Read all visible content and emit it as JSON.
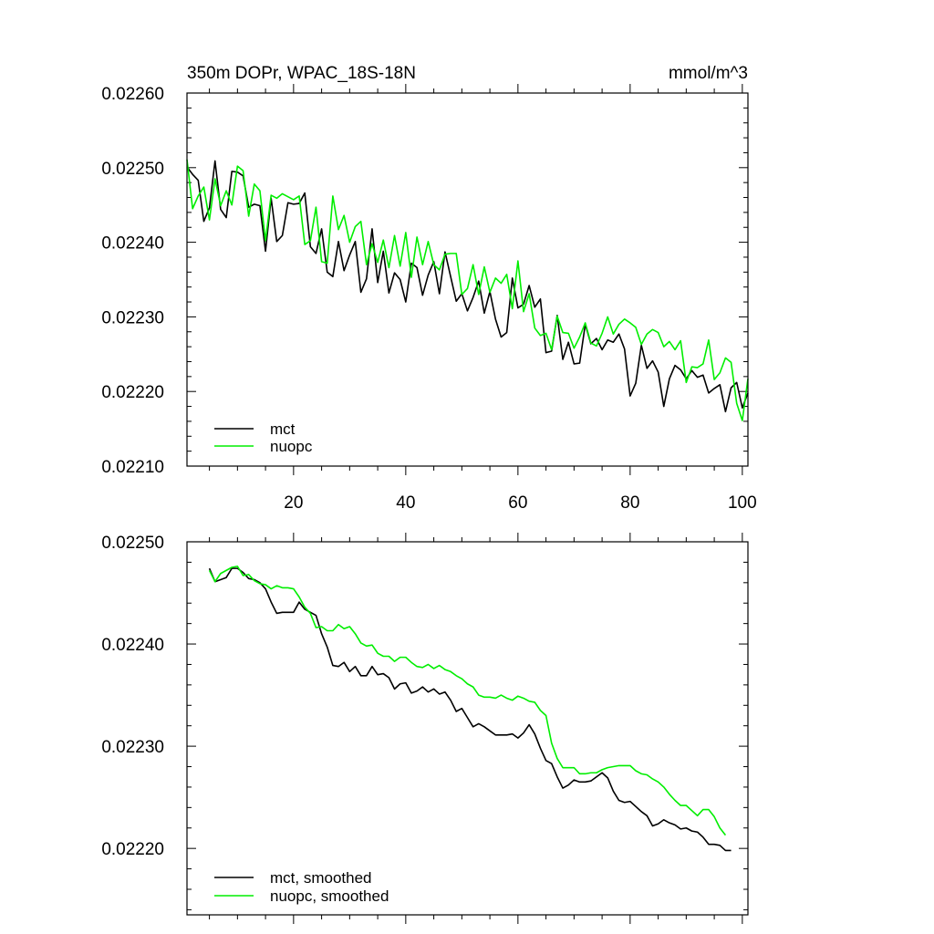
{
  "chart_data": [
    {
      "type": "line",
      "title": "350m DOPr, WPAC_18S-18N",
      "units": "mmol/m^3",
      "xlabel": "",
      "ylabel": "",
      "xlim": [
        1,
        101
      ],
      "ylim": [
        0.0221,
        0.0226
      ],
      "yticks": [
        "0.02210",
        "0.02220",
        "0.02230",
        "0.02240",
        "0.02250",
        "0.02260"
      ],
      "ytick_values": [
        0.0221,
        0.0222,
        0.0223,
        0.0224,
        0.0225,
        0.0226
      ],
      "xticks": [
        "20",
        "40",
        "60",
        "80",
        "100"
      ],
      "xtick_values": [
        20,
        40,
        60,
        80,
        100
      ],
      "legend_position": "bottom-left",
      "series": [
        {
          "name": "mct",
          "color": "#000000",
          "x_start": 1,
          "values": [
            0.022501,
            0.022491,
            0.022483,
            0.022428,
            0.022446,
            0.022509,
            0.022444,
            0.022433,
            0.022495,
            0.022494,
            0.022489,
            0.022447,
            0.022451,
            0.022449,
            0.022388,
            0.022459,
            0.022401,
            0.022409,
            0.022453,
            0.022451,
            0.022452,
            0.022466,
            0.022394,
            0.022385,
            0.022418,
            0.02236,
            0.022354,
            0.022401,
            0.022362,
            0.022383,
            0.022401,
            0.022333,
            0.022351,
            0.022418,
            0.022346,
            0.022388,
            0.022332,
            0.022359,
            0.02235,
            0.02232,
            0.022372,
            0.022366,
            0.022329,
            0.022356,
            0.022374,
            0.022331,
            0.022387,
            0.022354,
            0.022321,
            0.022331,
            0.022308,
            0.022326,
            0.022348,
            0.022305,
            0.022334,
            0.022297,
            0.022273,
            0.022279,
            0.022352,
            0.022312,
            0.022317,
            0.022342,
            0.022313,
            0.022324,
            0.022252,
            0.022254,
            0.022302,
            0.022243,
            0.022266,
            0.022237,
            0.022238,
            0.02229,
            0.022264,
            0.022271,
            0.022256,
            0.022269,
            0.022266,
            0.022277,
            0.022257,
            0.022194,
            0.022211,
            0.022262,
            0.022231,
            0.022241,
            0.022226,
            0.02218,
            0.022217,
            0.022235,
            0.022229,
            0.022217,
            0.022228,
            0.022219,
            0.022222,
            0.022198,
            0.022204,
            0.022209,
            0.022173,
            0.022205,
            0.022212,
            0.022178,
            0.022198
          ]
        },
        {
          "name": "nuopc",
          "color": "#00ee00",
          "x_start": 1,
          "values": [
            0.022511,
            0.022445,
            0.022462,
            0.022474,
            0.02243,
            0.022485,
            0.022449,
            0.022469,
            0.02245,
            0.022502,
            0.022496,
            0.022435,
            0.022478,
            0.022469,
            0.022402,
            0.022463,
            0.022459,
            0.022465,
            0.022461,
            0.022457,
            0.022462,
            0.022397,
            0.022402,
            0.022447,
            0.022374,
            0.022372,
            0.022462,
            0.022417,
            0.022436,
            0.0224,
            0.022421,
            0.022428,
            0.02237,
            0.022398,
            0.022373,
            0.022403,
            0.022366,
            0.022409,
            0.022368,
            0.022413,
            0.022353,
            0.022407,
            0.02237,
            0.022401,
            0.02237,
            0.022363,
            0.022384,
            0.022385,
            0.022385,
            0.02233,
            0.022338,
            0.02237,
            0.02233,
            0.022367,
            0.022333,
            0.022352,
            0.022345,
            0.022357,
            0.022311,
            0.022375,
            0.022307,
            0.022331,
            0.022285,
            0.022275,
            0.022278,
            0.022256,
            0.022301,
            0.022279,
            0.022278,
            0.022258,
            0.022273,
            0.022292,
            0.022265,
            0.022261,
            0.022278,
            0.0223,
            0.022277,
            0.02229,
            0.022297,
            0.022292,
            0.022286,
            0.022263,
            0.022277,
            0.022283,
            0.022279,
            0.02226,
            0.022267,
            0.022256,
            0.022268,
            0.022212,
            0.022233,
            0.022232,
            0.022237,
            0.022269,
            0.022216,
            0.022225,
            0.022245,
            0.022239,
            0.022184,
            0.022161,
            0.022217
          ]
        }
      ]
    },
    {
      "type": "line",
      "title": "",
      "xlabel": "",
      "ylabel": "",
      "xlim": [
        1,
        101
      ],
      "ylim": [
        0.022135,
        0.0225
      ],
      "yticks": [
        "0.02220",
        "0.02230",
        "0.02240",
        "0.02250"
      ],
      "ytick_values": [
        0.0222,
        0.0223,
        0.0224,
        0.0225
      ],
      "legend_position": "bottom-left",
      "series": [
        {
          "name": "mct, smoothed",
          "color": "#000000",
          "x_start": 5,
          "values": [
            0.022474,
            0.022461,
            0.022463,
            0.022465,
            0.022474,
            0.022474,
            0.02247,
            0.022464,
            0.022463,
            0.02246,
            0.022454,
            0.022441,
            0.02243,
            0.022431,
            0.022431,
            0.022431,
            0.022441,
            0.022434,
            0.022431,
            0.022428,
            0.02241,
            0.022397,
            0.022379,
            0.022378,
            0.022382,
            0.022373,
            0.022378,
            0.022369,
            0.022369,
            0.022378,
            0.02237,
            0.022371,
            0.022367,
            0.022356,
            0.022361,
            0.022362,
            0.022352,
            0.022354,
            0.022358,
            0.022353,
            0.022356,
            0.022351,
            0.022353,
            0.022345,
            0.022334,
            0.022337,
            0.022328,
            0.022319,
            0.022322,
            0.022319,
            0.022315,
            0.022311,
            0.022311,
            0.022311,
            0.022312,
            0.022308,
            0.022313,
            0.022321,
            0.022312,
            0.022298,
            0.022286,
            0.022283,
            0.02227,
            0.022259,
            0.022262,
            0.022267,
            0.022265,
            0.022265,
            0.022266,
            0.02227,
            0.022274,
            0.022269,
            0.022256,
            0.022247,
            0.022245,
            0.022246,
            0.022241,
            0.022236,
            0.022232,
            0.022222,
            0.022224,
            0.022228,
            0.022225,
            0.022223,
            0.022219,
            0.02222,
            0.022217,
            0.022216,
            0.022211,
            0.022204,
            0.022204,
            0.022203,
            0.022198,
            0.022198
          ]
        },
        {
          "name": "nuopc, smoothed",
          "color": "#00ee00",
          "x_start": 5,
          "values": [
            0.022472,
            0.022461,
            0.022469,
            0.022472,
            0.022475,
            0.022476,
            0.022467,
            0.022468,
            0.022462,
            0.022459,
            0.022458,
            0.022454,
            0.022457,
            0.022455,
            0.022455,
            0.022454,
            0.022446,
            0.022436,
            0.02243,
            0.022416,
            0.022417,
            0.022413,
            0.022413,
            0.022419,
            0.022415,
            0.022417,
            0.02241,
            0.022401,
            0.022398,
            0.022399,
            0.022391,
            0.022388,
            0.022388,
            0.022383,
            0.022387,
            0.022387,
            0.022382,
            0.022378,
            0.022377,
            0.02238,
            0.022376,
            0.022379,
            0.022375,
            0.022373,
            0.022369,
            0.022366,
            0.022361,
            0.022358,
            0.02235,
            0.022348,
            0.022348,
            0.022347,
            0.02235,
            0.022347,
            0.022345,
            0.022349,
            0.022347,
            0.022344,
            0.022343,
            0.022335,
            0.02233,
            0.022303,
            0.022288,
            0.022279,
            0.022279,
            0.022279,
            0.022273,
            0.022273,
            0.022274,
            0.022274,
            0.022277,
            0.022279,
            0.02228,
            0.022281,
            0.022281,
            0.022281,
            0.022276,
            0.022273,
            0.022272,
            0.022268,
            0.022265,
            0.02226,
            0.022253,
            0.022247,
            0.022242,
            0.022242,
            0.022237,
            0.022232,
            0.022238,
            0.022238,
            0.022231,
            0.02222,
            0.022213
          ]
        }
      ]
    }
  ]
}
